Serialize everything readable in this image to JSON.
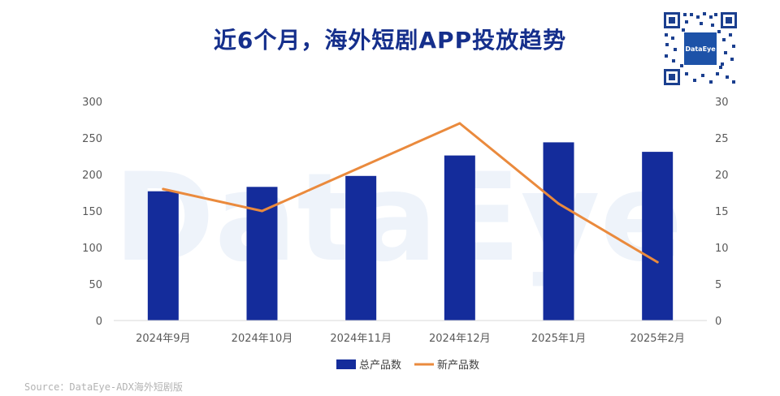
{
  "title": "近6个月，海外短剧APP投放趋势",
  "source": "Source：DataEye-ADX海外短剧版",
  "watermark": "DataEye",
  "qr_logo": "DataEye",
  "colors": {
    "bar": "#142c9b",
    "line": "#ea8a3d",
    "title": "#152f8c"
  },
  "chart_data": {
    "type": "bar",
    "categories": [
      "2024年9月",
      "2024年10月",
      "2024年11月",
      "2024年12月",
      "2025年1月",
      "2025年2月"
    ],
    "series": [
      {
        "name": "总产品数",
        "type": "bar",
        "axis": "left",
        "values": [
          177,
          183,
          198,
          226,
          244,
          231
        ]
      },
      {
        "name": "新产品数",
        "type": "line",
        "axis": "right",
        "values": [
          18,
          15,
          21,
          27,
          16,
          8
        ]
      }
    ],
    "y_left": {
      "lim": [
        0,
        300
      ],
      "ticks": [
        0,
        50,
        100,
        150,
        200,
        250,
        300
      ]
    },
    "y_right": {
      "lim": [
        0,
        30
      ],
      "ticks": [
        0,
        5,
        10,
        15,
        20,
        25,
        30
      ]
    },
    "legend": "bottom-center",
    "grid": false
  }
}
